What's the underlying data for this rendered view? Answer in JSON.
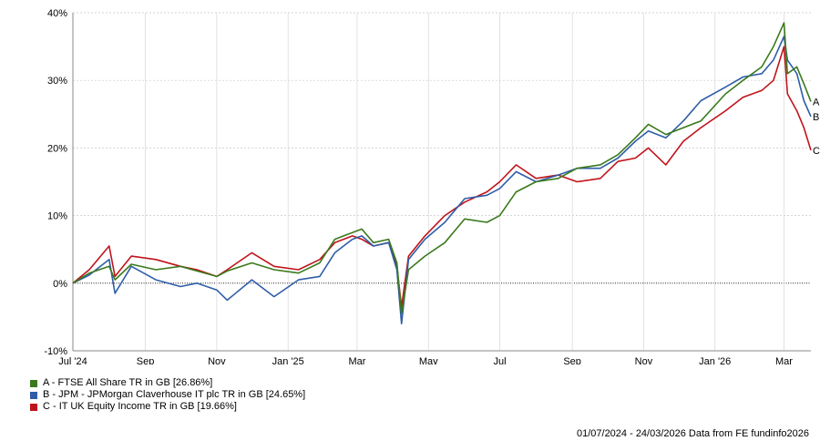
{
  "chart_data": {
    "type": "line",
    "title": "",
    "xlabel": "",
    "ylabel": "",
    "y_unit": "%",
    "ylim": [
      -10,
      40
    ],
    "yticks": [
      -10,
      0,
      10,
      20,
      30,
      40
    ],
    "ytick_labels": [
      "-10%",
      "0%",
      "10%",
      "20%",
      "30%",
      "40%"
    ],
    "xlim": [
      "2024-07-01",
      "2026-03-24"
    ],
    "xticks": [
      {
        "date": "2024-07-01",
        "label": "Jul '24"
      },
      {
        "date": "2024-09-01",
        "label": "Sep"
      },
      {
        "date": "2024-11-01",
        "label": "Nov"
      },
      {
        "date": "2025-01-01",
        "label": "Jan '25"
      },
      {
        "date": "2025-03-01",
        "label": "Mar"
      },
      {
        "date": "2025-05-01",
        "label": "May"
      },
      {
        "date": "2025-07-01",
        "label": "Jul"
      },
      {
        "date": "2025-09-01",
        "label": "Sep"
      },
      {
        "date": "2025-11-01",
        "label": "Nov"
      },
      {
        "date": "2026-01-01",
        "label": "Jan '26"
      },
      {
        "date": "2026-03-01",
        "label": "Mar"
      }
    ],
    "grid": true,
    "zero_line": "dotted",
    "legend_position": "bottom-left",
    "series": [
      {
        "name": "A - FTSE All Share TR in GB [26.86%]",
        "end_label": "A",
        "color": "#3a7a1c",
        "points": [
          [
            "2024-07-01",
            0
          ],
          [
            "2024-07-15",
            1.5
          ],
          [
            "2024-08-01",
            2.5
          ],
          [
            "2024-08-06",
            0.5
          ],
          [
            "2024-08-20",
            2.8
          ],
          [
            "2024-09-10",
            2.0
          ],
          [
            "2024-10-01",
            2.5
          ],
          [
            "2024-10-15",
            1.8
          ],
          [
            "2024-11-01",
            1.0
          ],
          [
            "2024-11-10",
            1.8
          ],
          [
            "2024-12-01",
            3.0
          ],
          [
            "2024-12-20",
            2.0
          ],
          [
            "2025-01-10",
            1.5
          ],
          [
            "2025-01-28",
            3.0
          ],
          [
            "2025-02-10",
            6.5
          ],
          [
            "2025-02-25",
            7.5
          ],
          [
            "2025-03-05",
            8.0
          ],
          [
            "2025-03-15",
            6.0
          ],
          [
            "2025-03-28",
            6.5
          ],
          [
            "2025-04-04",
            3.0
          ],
          [
            "2025-04-08",
            -4.5
          ],
          [
            "2025-04-14",
            2.0
          ],
          [
            "2025-04-28",
            4.0
          ],
          [
            "2025-05-15",
            6.0
          ],
          [
            "2025-06-01",
            9.5
          ],
          [
            "2025-06-20",
            9.0
          ],
          [
            "2025-07-01",
            10.0
          ],
          [
            "2025-07-15",
            13.5
          ],
          [
            "2025-08-01",
            15.0
          ],
          [
            "2025-08-20",
            15.5
          ],
          [
            "2025-09-05",
            17.0
          ],
          [
            "2025-09-25",
            17.5
          ],
          [
            "2025-10-10",
            19.0
          ],
          [
            "2025-10-25",
            21.5
          ],
          [
            "2025-11-05",
            23.5
          ],
          [
            "2025-11-20",
            22.0
          ],
          [
            "2025-12-05",
            23.0
          ],
          [
            "2025-12-20",
            24.0
          ],
          [
            "2026-01-10",
            28.0
          ],
          [
            "2026-01-25",
            30.0
          ],
          [
            "2026-02-10",
            32.0
          ],
          [
            "2026-02-20",
            35.0
          ],
          [
            "2026-03-01",
            38.5
          ],
          [
            "2026-03-04",
            31.0
          ],
          [
            "2026-03-12",
            32.0
          ],
          [
            "2026-03-18",
            29.5
          ],
          [
            "2026-03-24",
            26.86
          ]
        ]
      },
      {
        "name": "B - JPM - JPMorgan Claverhouse IT plc TR in GB [24.65%]",
        "end_label": "B",
        "color": "#2f5ea8",
        "points": [
          [
            "2024-07-01",
            0
          ],
          [
            "2024-07-15",
            1.2
          ],
          [
            "2024-08-01",
            3.5
          ],
          [
            "2024-08-06",
            -1.5
          ],
          [
            "2024-08-20",
            2.5
          ],
          [
            "2024-09-10",
            0.5
          ],
          [
            "2024-10-01",
            -0.5
          ],
          [
            "2024-10-15",
            0.0
          ],
          [
            "2024-11-01",
            -1.0
          ],
          [
            "2024-11-10",
            -2.5
          ],
          [
            "2024-12-01",
            0.5
          ],
          [
            "2024-12-20",
            -2.0
          ],
          [
            "2025-01-10",
            0.5
          ],
          [
            "2025-01-28",
            1.0
          ],
          [
            "2025-02-10",
            4.5
          ],
          [
            "2025-02-25",
            6.5
          ],
          [
            "2025-03-05",
            7.0
          ],
          [
            "2025-03-15",
            5.5
          ],
          [
            "2025-03-28",
            6.0
          ],
          [
            "2025-04-04",
            2.0
          ],
          [
            "2025-04-08",
            -6.0
          ],
          [
            "2025-04-14",
            3.5
          ],
          [
            "2025-04-28",
            6.5
          ],
          [
            "2025-05-15",
            9.0
          ],
          [
            "2025-06-01",
            12.5
          ],
          [
            "2025-06-20",
            13.0
          ],
          [
            "2025-07-01",
            14.0
          ],
          [
            "2025-07-15",
            16.5
          ],
          [
            "2025-08-01",
            15.0
          ],
          [
            "2025-08-20",
            16.0
          ],
          [
            "2025-09-05",
            17.0
          ],
          [
            "2025-09-25",
            17.0
          ],
          [
            "2025-10-10",
            18.5
          ],
          [
            "2025-10-25",
            21.0
          ],
          [
            "2025-11-05",
            22.5
          ],
          [
            "2025-11-20",
            21.5
          ],
          [
            "2025-12-05",
            24.0
          ],
          [
            "2025-12-20",
            27.0
          ],
          [
            "2026-01-10",
            29.0
          ],
          [
            "2026-01-25",
            30.5
          ],
          [
            "2026-02-10",
            31.0
          ],
          [
            "2026-02-20",
            33.0
          ],
          [
            "2026-03-01",
            36.5
          ],
          [
            "2026-03-04",
            33.0
          ],
          [
            "2026-03-12",
            31.0
          ],
          [
            "2026-03-18",
            27.0
          ],
          [
            "2026-03-24",
            24.65
          ]
        ]
      },
      {
        "name": "C - IT UK Equity Income TR in GB [19.66%]",
        "end_label": "C",
        "color": "#c0141c",
        "points": [
          [
            "2024-07-01",
            0
          ],
          [
            "2024-07-15",
            2.0
          ],
          [
            "2024-08-01",
            5.5
          ],
          [
            "2024-08-06",
            1.0
          ],
          [
            "2024-08-20",
            4.0
          ],
          [
            "2024-09-10",
            3.5
          ],
          [
            "2024-10-01",
            2.5
          ],
          [
            "2024-10-15",
            2.0
          ],
          [
            "2024-11-01",
            1.0
          ],
          [
            "2024-11-10",
            2.0
          ],
          [
            "2024-12-01",
            4.5
          ],
          [
            "2024-12-20",
            2.5
          ],
          [
            "2025-01-10",
            2.0
          ],
          [
            "2025-01-28",
            3.5
          ],
          [
            "2025-02-10",
            6.0
          ],
          [
            "2025-02-25",
            7.0
          ],
          [
            "2025-03-05",
            6.5
          ],
          [
            "2025-03-15",
            5.5
          ],
          [
            "2025-03-28",
            6.0
          ],
          [
            "2025-04-04",
            2.5
          ],
          [
            "2025-04-08",
            -3.5
          ],
          [
            "2025-04-14",
            4.0
          ],
          [
            "2025-04-28",
            7.0
          ],
          [
            "2025-05-15",
            10.0
          ],
          [
            "2025-06-01",
            12.0
          ],
          [
            "2025-06-20",
            13.5
          ],
          [
            "2025-07-01",
            15.0
          ],
          [
            "2025-07-15",
            17.5
          ],
          [
            "2025-08-01",
            15.5
          ],
          [
            "2025-08-20",
            16.0
          ],
          [
            "2025-09-05",
            15.0
          ],
          [
            "2025-09-25",
            15.5
          ],
          [
            "2025-10-10",
            18.0
          ],
          [
            "2025-10-25",
            18.5
          ],
          [
            "2025-11-05",
            20.0
          ],
          [
            "2025-11-20",
            17.5
          ],
          [
            "2025-12-05",
            21.0
          ],
          [
            "2025-12-20",
            23.0
          ],
          [
            "2026-01-10",
            25.5
          ],
          [
            "2026-01-25",
            27.5
          ],
          [
            "2026-02-10",
            28.5
          ],
          [
            "2026-02-20",
            30.0
          ],
          [
            "2026-03-01",
            35.0
          ],
          [
            "2026-03-04",
            28.0
          ],
          [
            "2026-03-12",
            25.5
          ],
          [
            "2026-03-18",
            23.0
          ],
          [
            "2026-03-24",
            19.66
          ]
        ]
      }
    ]
  },
  "footer": {
    "text": "01/07/2024 - 24/03/2026 Data from FE fundinfo2026"
  }
}
